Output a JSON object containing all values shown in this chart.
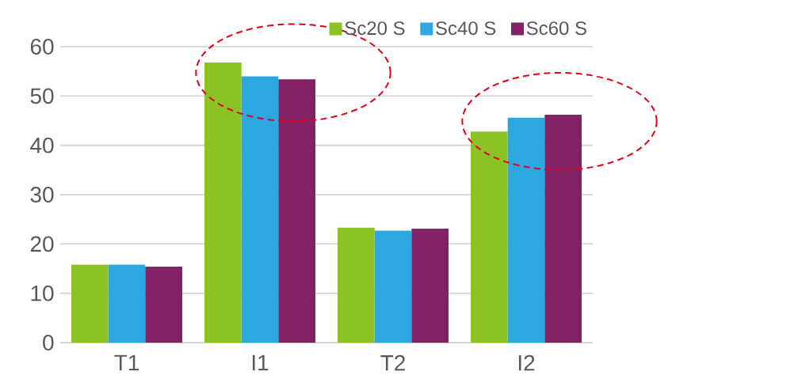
{
  "chart_data": {
    "type": "bar",
    "categories": [
      "T1",
      "I1",
      "T2",
      "I2"
    ],
    "series": [
      {
        "name": "Sc20 S",
        "color": "#8dc224",
        "values": [
          15.8,
          56.8,
          23.3,
          42.8
        ]
      },
      {
        "name": "Sc40 S",
        "color": "#2ca7e0",
        "values": [
          15.8,
          54.0,
          22.7,
          45.6
        ]
      },
      {
        "name": "Sc60 S",
        "color": "#832166",
        "values": [
          15.4,
          53.4,
          23.1,
          46.2
        ]
      }
    ],
    "ylim": [
      0,
      60
    ],
    "yticks": [
      0,
      10,
      20,
      30,
      40,
      50,
      60
    ],
    "grid": "y",
    "legend": "top right"
  }
}
